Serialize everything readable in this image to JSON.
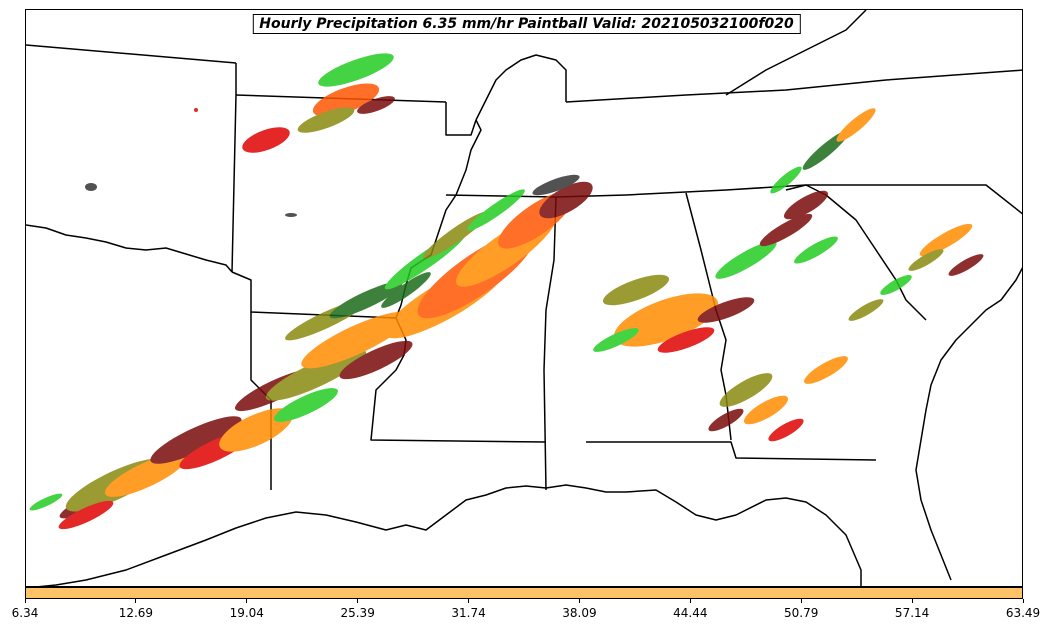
{
  "title": "Hourly Precipitation 6.35 mm/hr Paintball Valid: 202105032100f020",
  "colorbar": {
    "color": "#ffc266",
    "min": 6.34,
    "max": 63.49,
    "ticks": [
      "6.34",
      "12.69",
      "19.04",
      "25.39",
      "31.74",
      "38.09",
      "44.44",
      "50.79",
      "57.14",
      "63.49"
    ]
  },
  "paintball_colors": {
    "green_light": "#22cc22",
    "green_dark": "#1a6b1a",
    "olive": "#8a8a10",
    "orange": "#ff8c00",
    "orange_red": "#ff5500",
    "red": "#e00000",
    "maroon": "#7a0a0a",
    "dark_gray": "#333333"
  }
}
